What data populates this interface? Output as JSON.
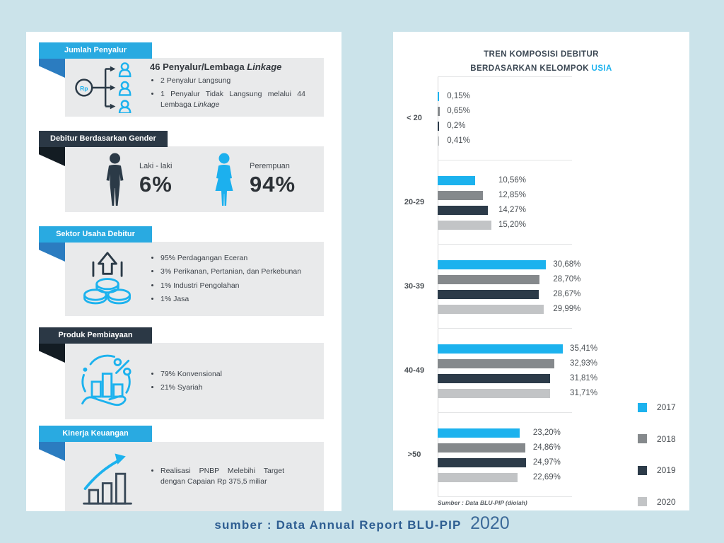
{
  "infographic": {
    "sections": [
      {
        "title": "Jumlah Penyalur",
        "heading_main": "46 Penyalur/Lembaga ",
        "heading_italic": "Linkage",
        "bullets": [
          {
            "text": "2 Penyalur Langsung",
            "italic": ""
          },
          {
            "text": "1 Penyalur Tidak Langsung melalui 44 Lembaga ",
            "italic": "Linkage"
          }
        ]
      },
      {
        "title": "Debitur Berdasarkan Gender",
        "male_label": "Laki - laki",
        "male_value": "6%",
        "female_label": "Perempuan",
        "female_value": "94%"
      },
      {
        "title": "Sektor Usaha Debitur",
        "bullets": [
          "95% Perdagangan Eceran",
          "3% Perikanan, Pertanian, dan Perkebunan",
          "1% Industri Pengolahan",
          "1% Jasa"
        ]
      },
      {
        "title": "Produk Pembiayaan",
        "bullets": [
          "79% Konvensional",
          "21% Syariah"
        ]
      },
      {
        "title": "Kinerja Keuangan",
        "bullets": [
          "Realisasi PNBP Melebihi Target dengan Capaian Rp 375,5 miliar"
        ]
      }
    ]
  },
  "chart_data": {
    "type": "bar",
    "orientation": "horizontal",
    "title_line1": "TREN KOMPOSISI DEBITUR",
    "title_line2": "BERDASARKAN KELOMPOK",
    "title_highlight": "USIA",
    "categories": [
      "< 20",
      "20-29",
      "30-39",
      "40-49",
      ">50"
    ],
    "series": [
      {
        "name": "2017",
        "color": "#1cb2ee",
        "values": [
          0.15,
          10.56,
          30.68,
          35.41,
          23.2
        ]
      },
      {
        "name": "2018",
        "color": "#85898c",
        "values": [
          0.65,
          12.85,
          28.7,
          32.93,
          24.86
        ]
      },
      {
        "name": "2019",
        "color": "#2c3b49",
        "values": [
          0.2,
          14.27,
          28.67,
          31.81,
          24.97
        ]
      },
      {
        "name": "2020",
        "color": "#c2c4c6",
        "values": [
          0.41,
          15.2,
          29.99,
          31.71,
          22.69
        ]
      }
    ],
    "value_labels": [
      [
        "0,15%",
        "0,65%",
        "0,2%",
        "0,41%"
      ],
      [
        "10,56%",
        "12,85%",
        "14,27%",
        "15,20%"
      ],
      [
        "30,68%",
        "28,70%",
        "28,67%",
        "29,99%"
      ],
      [
        "35,41%",
        "32,93%",
        "31,81%",
        "31,71%"
      ],
      [
        "23,20%",
        "24,86%",
        "24,97%",
        "22,69%"
      ]
    ],
    "xlim": [
      0,
      36
    ],
    "grid": false,
    "legend_position": "right",
    "source_note": "Sumber : Data BLU-PIP (diolah)"
  },
  "caption": {
    "text": "sumber : Data Annual Report BLU-PIP",
    "year": "2020"
  },
  "colors": {
    "background": "#cbe3ea",
    "ribbon_blue": "#29aae1",
    "ribbon_navy": "#2b3845",
    "bar_2017": "#1cb2ee",
    "bar_2018": "#85898c",
    "bar_2019": "#2c3b49",
    "bar_2020": "#c2c4c6",
    "male_icon": "#2b3a47",
    "female_icon": "#1cb0ee"
  }
}
